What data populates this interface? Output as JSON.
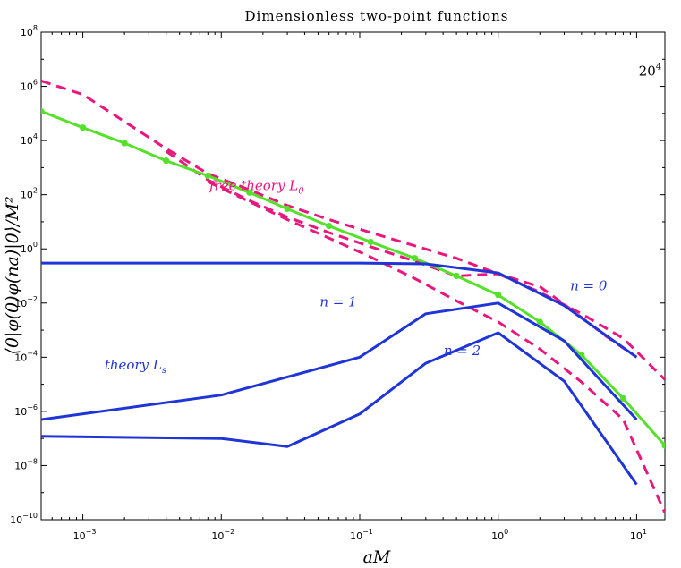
{
  "chart_data": {
    "type": "line",
    "title": "Dimensionless two-point functions",
    "xlabel": "aM",
    "ylabel": "⟨0|φ(0)φ(na)|0⟩/M²",
    "xscale": "log",
    "yscale": "log",
    "xlim": [
      0.0005,
      16
    ],
    "ylim": [
      1e-10,
      100000000.0
    ],
    "x_tick_labels": [
      {
        "value": 0.001,
        "base": "10",
        "exp": "−3"
      },
      {
        "value": 0.01,
        "base": "10",
        "exp": "−2"
      },
      {
        "value": 0.1,
        "base": "10",
        "exp": "−1"
      },
      {
        "value": 1,
        "base": "10",
        "exp": "0"
      },
      {
        "value": 10,
        "base": "10",
        "exp": "1"
      }
    ],
    "y_tick_labels": [
      {
        "value": 100000000.0,
        "base": "10",
        "exp": "8"
      },
      {
        "value": 1000000.0,
        "base": "10",
        "exp": "6"
      },
      {
        "value": 10000.0,
        "base": "10",
        "exp": "4"
      },
      {
        "value": 100.0,
        "base": "10",
        "exp": "2"
      },
      {
        "value": 1,
        "base": "10",
        "exp": "0"
      },
      {
        "value": 0.01,
        "base": "10",
        "exp": "−2"
      },
      {
        "value": 0.0001,
        "base": "10",
        "exp": "−4"
      },
      {
        "value": 1e-06,
        "base": "10",
        "exp": "−6"
      },
      {
        "value": 1e-08,
        "base": "10",
        "exp": "−8"
      },
      {
        "value": 1e-10,
        "base": "10",
        "exp": "−10"
      }
    ],
    "colors": {
      "free": "#e8177d",
      "theory": "#1f35d6",
      "green": "#55e02a"
    },
    "series": [
      {
        "name": "free theory L0 upper",
        "style": "dashed",
        "color": "#e8177d",
        "x": [
          0.0005,
          0.001,
          0.002,
          0.004,
          0.008,
          0.016,
          0.03,
          0.06,
          0.12,
          0.25,
          0.5,
          1,
          2,
          4,
          8,
          16
        ],
        "y": [
          1600000.0,
          500000.0,
          50000.0,
          5000.0,
          600,
          150,
          40,
          12,
          4,
          1.3,
          0.45,
          0.12,
          0.025,
          0.004,
          0.0005,
          1.5e-05
        ]
      },
      {
        "name": "free theory L0 middle",
        "style": "dashed",
        "color": "#e8177d",
        "x": [
          0.004,
          0.008,
          0.016,
          0.03,
          0.06,
          0.12,
          0.25,
          0.5,
          1,
          2,
          3,
          6,
          10
        ],
        "y": [
          4000,
          350,
          60,
          15,
          4,
          1.2,
          0.35,
          0.1,
          0.12,
          0.04,
          0.009,
          0.0006,
          0.0001
        ]
      },
      {
        "name": "free theory L0 lower",
        "style": "dashed",
        "color": "#e8177d",
        "x": [
          0.008,
          0.016,
          0.03,
          0.06,
          0.12,
          0.25,
          0.5,
          1,
          2,
          4,
          8,
          16
        ],
        "y": [
          300,
          55,
          12,
          2.5,
          0.5,
          0.08,
          0.012,
          0.002,
          0.0002,
          1.2e-05,
          5e-07,
          1.8e-10
        ]
      },
      {
        "name": "green series",
        "style": "solid",
        "color": "#55e02a",
        "markers": true,
        "x": [
          0.0005,
          0.001,
          0.002,
          0.004,
          0.008,
          0.016,
          0.03,
          0.06,
          0.12,
          0.25,
          0.5,
          1,
          2,
          4,
          8,
          16
        ],
        "y": [
          120000.0,
          30000.0,
          8000.0,
          1800.0,
          500,
          120,
          30,
          7,
          1.8,
          0.45,
          0.1,
          0.02,
          0.002,
          0.00012,
          3e-06,
          5.5e-08
        ]
      },
      {
        "name": "theory Ls n=0",
        "style": "solid",
        "color": "#1f35d6",
        "x": [
          0.0005,
          0.01,
          0.1,
          0.3,
          1,
          3,
          10
        ],
        "y": [
          0.3,
          0.3,
          0.3,
          0.28,
          0.13,
          0.008,
          0.0001
        ]
      },
      {
        "name": "theory Ls n=1",
        "style": "solid",
        "color": "#1f35d6",
        "x": [
          0.0005,
          0.01,
          0.1,
          0.3,
          1,
          3,
          10
        ],
        "y": [
          5e-07,
          4e-06,
          0.0001,
          0.004,
          0.01,
          0.0004,
          5e-07
        ]
      },
      {
        "name": "theory Ls n=2",
        "style": "solid",
        "color": "#1f35d6",
        "x": [
          0.0005,
          0.01,
          0.03,
          0.1,
          0.3,
          1,
          3,
          10
        ],
        "y": [
          1.2e-07,
          1e-07,
          5e-08,
          8e-07,
          6e-05,
          0.0008,
          1.3e-05,
          2e-09
        ]
      }
    ],
    "annotations": [
      {
        "name": "lattice-size",
        "base": "20",
        "exp": "4",
        "color": "#000000",
        "x": 12.5,
        "y": 2500000.0
      },
      {
        "name": "free-theory",
        "text": "free theory L",
        "sub": "0",
        "color": "#e8177d",
        "x": 0.018,
        "y": 150
      },
      {
        "name": "n0",
        "text": "n = 0",
        "color": "#1f35d6",
        "x": 4.5,
        "y": 0.03
      },
      {
        "name": "n1",
        "text": "n = 1",
        "color": "#1f35d6",
        "x": 0.07,
        "y": 0.0075
      },
      {
        "name": "n2",
        "text": "n = 2",
        "color": "#1f35d6",
        "x": 0.55,
        "y": 0.00012
      },
      {
        "name": "theory-ls",
        "text": "theory L",
        "sub": "s",
        "color": "#1f35d6",
        "x": 0.0024,
        "y": 3.5e-05
      }
    ]
  }
}
